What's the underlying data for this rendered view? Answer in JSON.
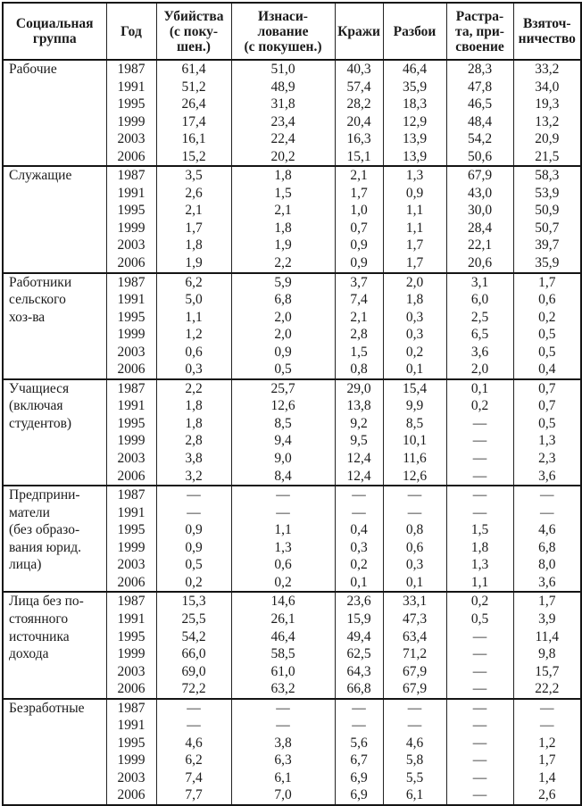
{
  "table": {
    "headers": [
      "Социальная\nгруппа",
      "Год",
      "Убийства\n(с поку-\nшен.)",
      "Изнаси-\nлование\n(с покушен.)",
      "Кражи",
      "Разбои",
      "Растра-\nта, при-\nсвоение",
      "Взяточ-\nничество"
    ],
    "groups": [
      {
        "name": "Рабочие",
        "rows": [
          {
            "year": "1987",
            "values": [
              "61,4",
              "51,0",
              "40,3",
              "46,4",
              "28,3",
              "33,2"
            ]
          },
          {
            "year": "1991",
            "values": [
              "51,2",
              "48,9",
              "57,4",
              "35,9",
              "47,8",
              "34,0"
            ]
          },
          {
            "year": "1995",
            "values": [
              "26,4",
              "31,8",
              "28,2",
              "18,3",
              "46,5",
              "19,3"
            ]
          },
          {
            "year": "1999",
            "values": [
              "17,4",
              "23,4",
              "20,4",
              "12,9",
              "48,4",
              "13,2"
            ]
          },
          {
            "year": "2003",
            "values": [
              "16,1",
              "22,4",
              "16,3",
              "13,9",
              "54,2",
              "20,9"
            ]
          },
          {
            "year": "2006",
            "values": [
              "15,2",
              "20,2",
              "15,1",
              "13,9",
              "50,6",
              "21,5"
            ]
          }
        ]
      },
      {
        "name": "Служащие",
        "rows": [
          {
            "year": "1987",
            "values": [
              "3,5",
              "1,8",
              "2,1",
              "1,3",
              "67,9",
              "58,3"
            ]
          },
          {
            "year": "1991",
            "values": [
              "2,6",
              "1,5",
              "1,7",
              "0,9",
              "43,0",
              "53,9"
            ]
          },
          {
            "year": "1995",
            "values": [
              "2,1",
              "2,1",
              "1,0",
              "1,1",
              "30,0",
              "50,9"
            ]
          },
          {
            "year": "1999",
            "values": [
              "1,7",
              "1,8",
              "0,7",
              "1,1",
              "28,4",
              "50,7"
            ]
          },
          {
            "year": "2003",
            "values": [
              "1,8",
              "1,9",
              "0,9",
              "1,7",
              "22,1",
              "39,7"
            ]
          },
          {
            "year": "2006",
            "values": [
              "1,9",
              "2,2",
              "0,9",
              "1,7",
              "20,6",
              "35,9"
            ]
          }
        ]
      },
      {
        "name": "Работники\nсельского\nхоз-ва",
        "rows": [
          {
            "year": "1987",
            "values": [
              "6,2",
              "5,9",
              "3,7",
              "2,0",
              "3,1",
              "1,7"
            ]
          },
          {
            "year": "1991",
            "values": [
              "5,0",
              "6,8",
              "7,4",
              "1,8",
              "6,0",
              "0,6"
            ]
          },
          {
            "year": "1995",
            "values": [
              "1,1",
              "2,0",
              "2,1",
              "0,3",
              "2,5",
              "0,2"
            ]
          },
          {
            "year": "1999",
            "values": [
              "1,2",
              "2,0",
              "2,8",
              "0,3",
              "6,5",
              "0,5"
            ]
          },
          {
            "year": "2003",
            "values": [
              "0,6",
              "0,9",
              "1,5",
              "0,2",
              "3,6",
              "0,5"
            ]
          },
          {
            "year": "2006",
            "values": [
              "0,3",
              "0,5",
              "0,8",
              "0,1",
              "2,0",
              "0,4"
            ]
          }
        ]
      },
      {
        "name": "Учащиеся\n(включая\nстудентов)",
        "rows": [
          {
            "year": "1987",
            "values": [
              "2,2",
              "25,7",
              "29,0",
              "15,4",
              "0,1",
              "0,7"
            ]
          },
          {
            "year": "1991",
            "values": [
              "1,8",
              "12,6",
              "13,8",
              "9,9",
              "0,2",
              "0,7"
            ]
          },
          {
            "year": "1995",
            "values": [
              "1,8",
              "8,5",
              "9,2",
              "8,5",
              "—",
              "0,5"
            ]
          },
          {
            "year": "1999",
            "values": [
              "2,8",
              "9,4",
              "9,5",
              "10,1",
              "—",
              "1,3"
            ]
          },
          {
            "year": "2003",
            "values": [
              "3,8",
              "9,0",
              "12,4",
              "11,6",
              "—",
              "2,3"
            ]
          },
          {
            "year": "2006",
            "values": [
              "3,2",
              "8,4",
              "12,4",
              "12,6",
              "—",
              "3,6"
            ]
          }
        ]
      },
      {
        "name": "Предприни-\nматели\n(без образо-\nвания юрид.\nлица)",
        "rows": [
          {
            "year": "1987",
            "values": [
              "—",
              "—",
              "—",
              "—",
              "—",
              "—"
            ]
          },
          {
            "year": "1991",
            "values": [
              "—",
              "—",
              "—",
              "—",
              "—",
              "—"
            ]
          },
          {
            "year": "1995",
            "values": [
              "0,9",
              "1,1",
              "0,4",
              "0,8",
              "1,5",
              "4,6"
            ]
          },
          {
            "year": "1999",
            "values": [
              "0,9",
              "1,3",
              "0,3",
              "0,6",
              "1,8",
              "6,8"
            ]
          },
          {
            "year": "2003",
            "values": [
              "0,5",
              "0,6",
              "0,2",
              "0,3",
              "1,3",
              "8,0"
            ]
          },
          {
            "year": "2006",
            "values": [
              "0,2",
              "0,2",
              "0,1",
              "0,1",
              "1,1",
              "3,6"
            ]
          }
        ]
      },
      {
        "name": "Лица без по-\nстоянного\nисточника\nдохода",
        "rows": [
          {
            "year": "1987",
            "values": [
              "15,3",
              "14,6",
              "23,6",
              "33,1",
              "0,2",
              "1,7"
            ]
          },
          {
            "year": "1991",
            "values": [
              "25,5",
              "26,1",
              "15,9",
              "47,3",
              "0,5",
              "3,9"
            ]
          },
          {
            "year": "1995",
            "values": [
              "54,2",
              "46,4",
              "49,4",
              "63,4",
              "—",
              "11,4"
            ]
          },
          {
            "year": "1999",
            "values": [
              "66,0",
              "58,5",
              "62,5",
              "71,2",
              "—",
              "9,8"
            ]
          },
          {
            "year": "2003",
            "values": [
              "69,0",
              "61,0",
              "64,3",
              "67,9",
              "—",
              "15,7"
            ]
          },
          {
            "year": "2006",
            "values": [
              "72,2",
              "63,2",
              "66,8",
              "67,9",
              "—",
              "22,2"
            ]
          }
        ]
      },
      {
        "name": "Безработные",
        "rows": [
          {
            "year": "1987",
            "values": [
              "—",
              "—",
              "—",
              "—",
              "—",
              "—"
            ]
          },
          {
            "year": "1991",
            "values": [
              "—",
              "—",
              "—",
              "—",
              "—",
              "—"
            ]
          },
          {
            "year": "1995",
            "values": [
              "4,6",
              "3,8",
              "5,6",
              "4,6",
              "—",
              "1,2"
            ]
          },
          {
            "year": "1999",
            "values": [
              "6,2",
              "6,3",
              "6,7",
              "5,8",
              "—",
              "1,7"
            ]
          },
          {
            "year": "2003",
            "values": [
              "7,4",
              "6,1",
              "6,9",
              "5,5",
              "—",
              "1,4"
            ]
          },
          {
            "year": "2006",
            "values": [
              "7,7",
              "7,0",
              "6,9",
              "6,1",
              "—",
              "2,6"
            ]
          }
        ]
      }
    ]
  }
}
